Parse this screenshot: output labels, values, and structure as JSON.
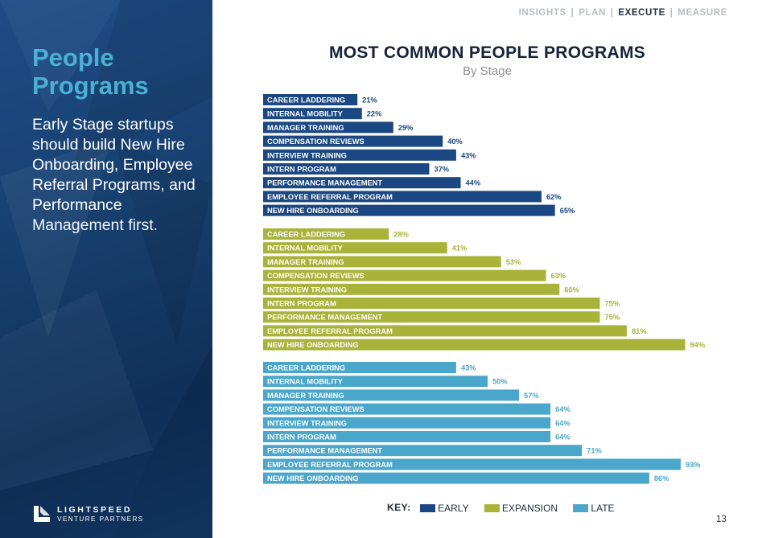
{
  "nav": {
    "items": [
      "INSIGHTS",
      "PLAN",
      "EXECUTE",
      "MEASURE"
    ],
    "active": "EXECUTE"
  },
  "left": {
    "title": "People Programs",
    "body_bold": "Early Stage startups should build New Hire Onboarding, Employee Referral Programs, and Performance",
    "body_light": "Management first."
  },
  "logo": {
    "name": "LIGHTSPEED",
    "sub": "VENTURE PARTNERS"
  },
  "key": {
    "title": "KEY:"
  },
  "page_number": "13",
  "colors": {
    "panel": "#17406f",
    "accent": "#4bb1d4",
    "early": "#1b4882",
    "expansion": "#a9b33a",
    "late": "#4aa7cb"
  },
  "chart_data": {
    "type": "bar",
    "orientation": "horizontal",
    "title": "MOST COMMON PEOPLE PROGRAMS",
    "subtitle": "By Stage",
    "value_suffix": "%",
    "xlim": [
      0,
      100
    ],
    "grid": false,
    "legend": "bottom",
    "categories": [
      "CAREER LADDERING",
      "INTERNAL MOBILITY",
      "MANAGER TRAINING",
      "COMPENSATION REVIEWS",
      "INTERVIEW TRAINING",
      "INTERN PROGRAM",
      "PERFORMANCE MANAGEMENT",
      "EMPLOYEE REFERRAL PROGRAM",
      "NEW HIRE ONBOARDING"
    ],
    "series": [
      {
        "name": "EARLY",
        "color": "#1b4882",
        "values": [
          21,
          22,
          29,
          40,
          43,
          37,
          44,
          62,
          65
        ]
      },
      {
        "name": "EXPANSION",
        "color": "#a9b33a",
        "values": [
          28,
          41,
          53,
          63,
          66,
          75,
          75,
          81,
          94
        ]
      },
      {
        "name": "LATE",
        "color": "#4aa7cb",
        "values": [
          43,
          50,
          57,
          64,
          64,
          64,
          71,
          93,
          86
        ]
      }
    ]
  }
}
